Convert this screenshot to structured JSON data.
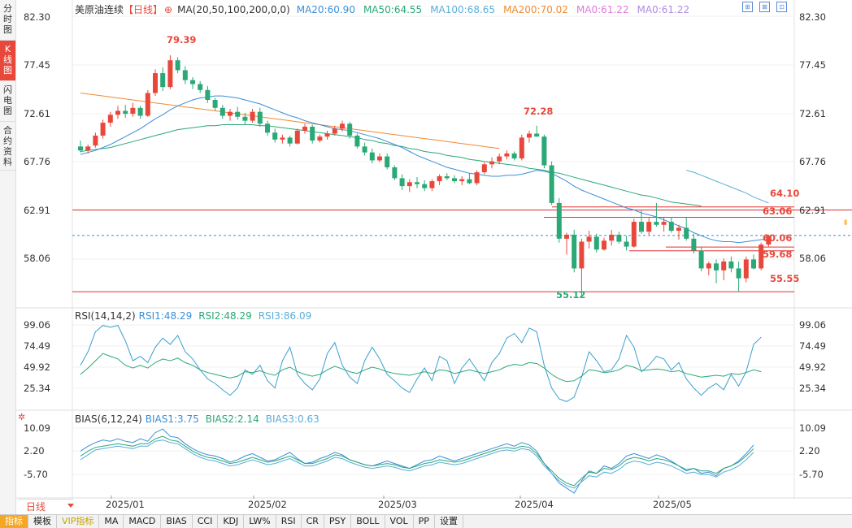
{
  "sidebar": {
    "items": [
      {
        "label": "分时图",
        "active": false
      },
      {
        "label": "K线图",
        "active": true
      },
      {
        "label": "闪电图",
        "active": false
      },
      {
        "label": "合约资料",
        "active": false
      }
    ]
  },
  "main_legend": {
    "name": "美原油连续",
    "period": "【日线】",
    "ma_def": "MA(20,50,100,200,0,0)",
    "ma20": "MA20:60.90",
    "ma50": "MA50:64.55",
    "ma100": "MA100:68.65",
    "ma200": "MA200:70.02",
    "ma0a": "MA0:61.22",
    "ma0b": "MA0:61.22",
    "colors": {
      "ma20": "#3a8fd9",
      "ma50": "#2aa876",
      "ma100": "#5aaed8",
      "ma200": "#f08a30",
      "ma0": "#e07ad8"
    }
  },
  "rsi_legend": {
    "def": "RSI(14,14,2)",
    "rsi1": "RSI1:48.29",
    "rsi2": "RSI2:48.29",
    "rsi3": "RSI3:86.09"
  },
  "bias_legend": {
    "def": "BIAS(6,12,24)",
    "bias1": "BIAS1:3.75",
    "bias2": "BIAS2:2.14",
    "bias3": "BIAS3:0.63"
  },
  "price_axis": [
    "82.30",
    "77.45",
    "72.61",
    "67.76",
    "62.91",
    "58.06"
  ],
  "rsi_axis": [
    "99.06",
    "74.49",
    "49.92",
    "25.34"
  ],
  "bias_axis": [
    "10.09",
    "2.20",
    "-5.70"
  ],
  "annotations": {
    "high": "79.39",
    "mid_high": "72.28",
    "low": "55.12",
    "levels": [
      "64.10",
      "63.06",
      "60.06",
      "59.68",
      "55.55"
    ]
  },
  "dates": [
    "2025/01",
    "2025/02",
    "2025/03",
    "2025/04",
    "2025/05"
  ],
  "period_button": "日线",
  "bottom_tabs": [
    {
      "label": "指标",
      "active": true
    },
    {
      "label": "模板",
      "active": false
    },
    {
      "label": "VIP指标",
      "active": false,
      "vip": true
    },
    {
      "label": "MA",
      "active": false
    },
    {
      "label": "MACD",
      "active": false
    },
    {
      "label": "BIAS",
      "active": false
    },
    {
      "label": "CCI",
      "active": false
    },
    {
      "label": "KDJ",
      "active": false
    },
    {
      "label": "LW%",
      "active": false
    },
    {
      "label": "RSI",
      "active": false
    },
    {
      "label": "CR",
      "active": false
    },
    {
      "label": "PSY",
      "active": false
    },
    {
      "label": "BOLL",
      "active": false
    },
    {
      "label": "VOL",
      "active": false
    },
    {
      "label": "PP",
      "active": false
    },
    {
      "label": "设置",
      "active": false
    }
  ],
  "chart_data": {
    "type": "candlestick",
    "ohlc": [
      [
        70.2,
        70.8,
        69.6,
        69.8
      ],
      [
        69.8,
        70.4,
        69.5,
        70.2
      ],
      [
        70.3,
        71.6,
        70.1,
        71.3
      ],
      [
        71.3,
        72.9,
        71.0,
        72.6
      ],
      [
        72.6,
        73.7,
        72.2,
        73.4
      ],
      [
        73.4,
        74.3,
        73.0,
        73.8
      ],
      [
        73.8,
        74.4,
        73.1,
        73.5
      ],
      [
        73.5,
        74.6,
        73.2,
        74.1
      ],
      [
        74.1,
        74.3,
        73.0,
        73.3
      ],
      [
        73.3,
        75.9,
        73.2,
        75.6
      ],
      [
        75.6,
        78.0,
        75.3,
        77.6
      ],
      [
        77.6,
        78.2,
        75.8,
        76.2
      ],
      [
        76.2,
        79.4,
        76.0,
        78.9
      ],
      [
        78.9,
        79.2,
        77.6,
        77.9
      ],
      [
        77.9,
        78.3,
        76.5,
        76.9
      ],
      [
        76.9,
        77.2,
        76.0,
        76.5
      ],
      [
        76.5,
        76.8,
        75.6,
        75.9
      ],
      [
        75.9,
        76.3,
        74.6,
        74.9
      ],
      [
        74.9,
        75.1,
        73.8,
        74.1
      ],
      [
        74.1,
        74.4,
        73.0,
        73.3
      ],
      [
        73.3,
        74.0,
        72.8,
        73.7
      ],
      [
        73.7,
        74.2,
        72.9,
        73.2
      ],
      [
        73.2,
        73.6,
        72.4,
        72.8
      ],
      [
        72.8,
        74.0,
        72.6,
        73.7
      ],
      [
        73.7,
        74.1,
        72.2,
        72.5
      ],
      [
        72.5,
        72.8,
        71.3,
        71.6
      ],
      [
        71.6,
        72.0,
        70.6,
        70.9
      ],
      [
        70.9,
        71.4,
        70.5,
        71.1
      ],
      [
        71.1,
        71.3,
        70.2,
        70.5
      ],
      [
        70.5,
        72.0,
        70.4,
        71.8
      ],
      [
        71.8,
        72.5,
        71.5,
        72.2
      ],
      [
        72.2,
        72.4,
        70.5,
        70.8
      ],
      [
        70.8,
        71.4,
        70.6,
        71.2
      ],
      [
        71.2,
        71.8,
        70.9,
        71.5
      ],
      [
        71.5,
        72.3,
        71.3,
        72.0
      ],
      [
        72.0,
        72.8,
        71.7,
        72.5
      ],
      [
        72.5,
        72.7,
        71.0,
        71.3
      ],
      [
        71.3,
        71.5,
        70.0,
        70.2
      ],
      [
        70.2,
        70.6,
        69.3,
        69.6
      ],
      [
        69.6,
        70.0,
        68.5,
        68.8
      ],
      [
        68.8,
        69.5,
        68.6,
        69.2
      ],
      [
        69.2,
        69.5,
        67.9,
        68.1
      ],
      [
        68.1,
        68.3,
        66.8,
        67.0
      ],
      [
        67.0,
        67.4,
        65.8,
        66.2
      ],
      [
        66.2,
        66.9,
        65.6,
        66.6
      ],
      [
        66.6,
        67.1,
        66.0,
        66.4
      ],
      [
        66.4,
        66.8,
        65.7,
        66.0
      ],
      [
        66.0,
        66.9,
        65.7,
        66.7
      ],
      [
        66.7,
        67.4,
        66.3,
        67.2
      ],
      [
        67.2,
        67.5,
        66.8,
        67.0
      ],
      [
        67.0,
        67.3,
        66.5,
        66.7
      ],
      [
        66.7,
        67.2,
        66.3,
        66.9
      ],
      [
        66.9,
        67.5,
        66.4,
        66.5
      ],
      [
        66.5,
        67.8,
        66.3,
        67.6
      ],
      [
        67.6,
        68.6,
        67.4,
        68.4
      ],
      [
        68.4,
        69.1,
        68.0,
        68.7
      ],
      [
        68.7,
        69.5,
        68.4,
        69.2
      ],
      [
        69.2,
        69.8,
        68.9,
        69.5
      ],
      [
        69.5,
        69.7,
        68.8,
        69.0
      ],
      [
        69.0,
        71.4,
        68.8,
        71.1
      ],
      [
        71.1,
        71.8,
        70.6,
        71.5
      ],
      [
        71.5,
        72.3,
        71.2,
        71.2
      ],
      [
        71.2,
        71.4,
        68.0,
        68.3
      ],
      [
        68.3,
        68.7,
        64.3,
        64.5
      ],
      [
        64.5,
        65.0,
        60.5,
        60.9
      ],
      [
        60.9,
        61.5,
        59.3,
        61.3
      ],
      [
        61.3,
        61.8,
        57.5,
        57.9
      ],
      [
        57.9,
        60.9,
        55.1,
        60.6
      ],
      [
        60.6,
        61.7,
        59.9,
        61.1
      ],
      [
        61.1,
        61.4,
        59.5,
        59.8
      ],
      [
        59.8,
        61.0,
        59.7,
        60.7
      ],
      [
        60.7,
        61.8,
        60.2,
        61.3
      ],
      [
        61.3,
        61.6,
        60.4,
        60.6
      ],
      [
        60.6,
        61.2,
        59.7,
        60.1
      ],
      [
        60.1,
        62.9,
        60.0,
        62.6
      ],
      [
        62.6,
        63.8,
        61.4,
        61.6
      ],
      [
        61.6,
        63.0,
        61.3,
        62.6
      ],
      [
        62.6,
        64.5,
        62.1,
        62.3
      ],
      [
        62.3,
        63.0,
        61.6,
        62.6
      ],
      [
        62.6,
        63.1,
        61.5,
        61.7
      ],
      [
        61.7,
        62.3,
        60.8,
        62.0
      ],
      [
        62.0,
        63.0,
        60.7,
        60.9
      ],
      [
        60.9,
        61.4,
        59.4,
        59.7
      ],
      [
        59.7,
        60.1,
        57.6,
        57.9
      ],
      [
        57.9,
        58.6,
        57.2,
        58.4
      ],
      [
        58.4,
        58.8,
        56.4,
        57.7
      ],
      [
        57.7,
        58.9,
        56.7,
        58.6
      ],
      [
        58.6,
        59.1,
        57.5,
        57.9
      ],
      [
        57.9,
        58.6,
        55.6,
        56.9
      ],
      [
        56.9,
        59.1,
        56.5,
        58.8
      ],
      [
        58.8,
        59.3,
        57.8,
        57.9
      ],
      [
        57.9,
        60.5,
        57.7,
        60.3
      ],
      [
        60.3,
        61.3,
        60.1,
        61.2
      ]
    ],
    "ma20": [
      69.4,
      69.6,
      69.8,
      70.1,
      70.4,
      70.8,
      71.2,
      71.6,
      72.0,
      72.5,
      73.0,
      73.4,
      73.9,
      74.3,
      74.6,
      74.9,
      75.1,
      75.2,
      75.3,
      75.3,
      75.2,
      75.1,
      74.9,
      74.7,
      74.5,
      74.2,
      73.9,
      73.6,
      73.3,
      73.1,
      72.8,
      72.6,
      72.4,
      72.2,
      72.0,
      71.9,
      71.8,
      71.6,
      71.4,
      71.2,
      71.0,
      70.7,
      70.4,
      70.1,
      69.7,
      69.3,
      69.0,
      68.7,
      68.4,
      68.1,
      67.9,
      67.7,
      67.5,
      67.4,
      67.3,
      67.2,
      67.2,
      67.3,
      67.3,
      67.4,
      67.6,
      67.8,
      67.7,
      67.5,
      67.1,
      66.7,
      66.2,
      65.8,
      65.5,
      65.2,
      64.9,
      64.6,
      64.3,
      64.0,
      63.8,
      63.5,
      63.3,
      63.1,
      62.8,
      62.5,
      62.2,
      61.9,
      61.5,
      61.2,
      60.9,
      60.7,
      60.6,
      60.6,
      60.5,
      60.6,
      60.7,
      60.8,
      60.9
    ],
    "ma50": [
      69.7,
      69.8,
      69.9,
      70.0,
      70.1,
      70.3,
      70.5,
      70.7,
      70.9,
      71.1,
      71.3,
      71.5,
      71.7,
      71.9,
      72.0,
      72.1,
      72.2,
      72.3,
      72.3,
      72.4,
      72.4,
      72.4,
      72.4,
      72.4,
      72.3,
      72.3,
      72.2,
      72.1,
      72.0,
      71.9,
      71.8,
      71.7,
      71.6,
      71.5,
      71.4,
      71.3,
      71.2,
      71.1,
      70.9,
      70.8,
      70.6,
      70.5,
      70.3,
      70.2,
      70.0,
      69.9,
      69.7,
      69.6,
      69.5,
      69.3,
      69.2,
      69.1,
      68.9,
      68.8,
      68.7,
      68.6,
      68.5,
      68.4,
      68.3,
      68.2,
      68.0,
      67.9,
      67.8,
      67.6,
      67.5,
      67.3,
      67.1,
      66.9,
      66.7,
      66.5,
      66.3,
      66.1,
      65.9,
      65.7,
      65.5,
      65.3,
      65.2,
      65.0,
      64.8,
      64.6,
      64.5,
      64.4,
      64.3,
      64.2
    ],
    "ma200": [
      75.6,
      75.5,
      75.4,
      75.3,
      75.2,
      75.1,
      75.0,
      74.9,
      74.8,
      74.7,
      74.6,
      74.5,
      74.4,
      74.3,
      74.2,
      74.1,
      74.0,
      73.9,
      73.8,
      73.7,
      73.6,
      73.5,
      73.4,
      73.3,
      73.2,
      73.1,
      73.0,
      72.9,
      72.8,
      72.7,
      72.6,
      72.5,
      72.4,
      72.3,
      72.2,
      72.1,
      72.0,
      71.9,
      71.8,
      71.7,
      71.6,
      71.5,
      71.4,
      71.3,
      71.2,
      71.1,
      71.0,
      70.9,
      70.8,
      70.7,
      70.6,
      70.5,
      70.4,
      70.3,
      70.2,
      70.1,
      70.0
    ],
    "ma100_tail": [
      67.8,
      67.6,
      67.3,
      67.0,
      66.7,
      66.4,
      66.1,
      65.8,
      65.5,
      65.1,
      64.8,
      64.5
    ],
    "rsi_a": [
      55,
      70,
      92,
      99,
      97,
      99,
      82,
      60,
      65,
      58,
      75,
      85,
      78,
      88,
      70,
      62,
      50,
      40,
      35,
      28,
      22,
      30,
      50,
      45,
      55,
      38,
      30,
      60,
      75,
      45,
      35,
      28,
      40,
      68,
      80,
      55,
      42,
      35,
      60,
      75,
      62,
      45,
      38,
      30,
      25,
      40,
      52,
      38,
      65,
      60,
      35,
      52,
      62,
      50,
      38,
      58,
      68,
      85,
      90,
      80,
      96,
      92,
      55,
      30,
      18,
      15,
      20,
      42,
      70,
      60,
      48,
      50,
      62,
      88,
      75,
      48,
      55,
      65,
      62,
      50,
      58,
      40,
      30,
      22,
      30,
      35,
      28,
      45,
      32,
      48,
      78,
      86
    ],
    "rsi_b": [
      45,
      52,
      60,
      68,
      65,
      62,
      55,
      52,
      55,
      52,
      58,
      62,
      60,
      63,
      58,
      55,
      50,
      47,
      45,
      43,
      41,
      43,
      48,
      47,
      49,
      46,
      44,
      50,
      53,
      48,
      45,
      43,
      45,
      50,
      54,
      51,
      48,
      46,
      50,
      53,
      51,
      48,
      46,
      45,
      44,
      46,
      48,
      46,
      50,
      49,
      46,
      48,
      50,
      48,
      46,
      48,
      50,
      54,
      56,
      55,
      58,
      57,
      52,
      45,
      40,
      37,
      38,
      43,
      50,
      49,
      47,
      48,
      50,
      55,
      53,
      49,
      50,
      51,
      50,
      48,
      49,
      46,
      44,
      42,
      43,
      44,
      43,
      46,
      45,
      47,
      50,
      48
    ],
    "bias_a": [
      1.0,
      3.0,
      4.5,
      5.5,
      5.0,
      6.0,
      5.0,
      4.5,
      6.0,
      5.0,
      8.5,
      10.0,
      7.0,
      6.5,
      4.0,
      2.0,
      0.5,
      -0.5,
      -1.0,
      -2.0,
      -3.5,
      -2.5,
      -1.0,
      0.0,
      -1.5,
      -3.0,
      -2.5,
      -1.0,
      0.5,
      -2.0,
      -4.0,
      -3.5,
      -2.0,
      -1.0,
      0.5,
      -0.5,
      -2.5,
      -3.5,
      -4.5,
      -5.0,
      -4.0,
      -3.0,
      -4.0,
      -5.0,
      -6.0,
      -4.5,
      -3.0,
      -2.5,
      -1.0,
      -2.0,
      -3.0,
      -2.0,
      -1.0,
      0.0,
      1.0,
      2.0,
      3.0,
      4.0,
      3.0,
      4.5,
      3.5,
      1.0,
      -4.0,
      -8.0,
      -12.0,
      -14.0,
      -16.0,
      -11.0,
      -7.0,
      -8.0,
      -5.0,
      -6.0,
      -4.0,
      -1.0,
      0.0,
      -1.0,
      -2.0,
      -0.5,
      -1.5,
      -3.0,
      -5.0,
      -7.0,
      -6.0,
      -8.0,
      -7.5,
      -9.0,
      -6.0,
      -5.0,
      -3.0,
      0.0,
      3.5
    ],
    "bias_b": [
      -1.0,
      1.0,
      2.5,
      3.0,
      3.5,
      4.0,
      3.5,
      3.0,
      4.0,
      4.0,
      6.0,
      7.0,
      5.5,
      5.0,
      3.0,
      1.0,
      -0.5,
      -1.5,
      -2.0,
      -3.0,
      -4.0,
      -3.5,
      -2.5,
      -1.5,
      -2.5,
      -3.5,
      -3.0,
      -2.0,
      -1.0,
      -2.5,
      -4.0,
      -4.0,
      -3.0,
      -2.0,
      -0.5,
      -1.0,
      -2.5,
      -3.5,
      -4.5,
      -5.0,
      -4.5,
      -4.0,
      -4.5,
      -5.5,
      -6.0,
      -5.0,
      -4.0,
      -3.5,
      -2.5,
      -3.0,
      -3.5,
      -3.0,
      -2.0,
      -1.0,
      0.0,
      1.0,
      2.0,
      2.5,
      2.0,
      3.0,
      2.5,
      0.0,
      -4.0,
      -7.0,
      -10.0,
      -12.0,
      -13.0,
      -10.0,
      -7.5,
      -8.0,
      -6.0,
      -6.5,
      -5.0,
      -2.5,
      -1.5,
      -2.0,
      -3.0,
      -2.0,
      -2.5,
      -3.5,
      -5.0,
      -6.5,
      -6.0,
      -7.0,
      -7.0,
      -8.0,
      -6.0,
      -5.0,
      -3.5,
      -1.0,
      2.0
    ],
    "bias_c": [
      -2.5,
      -0.5,
      1.5,
      2.0,
      2.5,
      3.0,
      2.5,
      2.0,
      3.0,
      3.0,
      5.0,
      5.5,
      4.5,
      4.0,
      2.0,
      0.0,
      -1.5,
      -2.5,
      -3.0,
      -4.0,
      -5.0,
      -4.5,
      -3.5,
      -2.5,
      -3.5,
      -4.5,
      -4.0,
      -3.0,
      -2.0,
      -3.5,
      -5.0,
      -5.0,
      -4.0,
      -3.0,
      -1.5,
      -2.0,
      -3.5,
      -4.5,
      -5.5,
      -6.0,
      -5.5,
      -5.0,
      -5.5,
      -6.5,
      -7.0,
      -6.0,
      -5.0,
      -4.5,
      -3.5,
      -4.0,
      -4.5,
      -4.0,
      -3.0,
      -2.0,
      -1.0,
      0.0,
      1.0,
      1.5,
      1.0,
      2.0,
      1.5,
      -1.0,
      -5.0,
      -8.0,
      -11.0,
      -13.0,
      -14.0,
      -11.5,
      -9.0,
      -9.5,
      -7.5,
      -8.0,
      -6.5,
      -4.0,
      -3.0,
      -3.5,
      -4.5,
      -3.5,
      -4.0,
      -5.0,
      -6.5,
      -8.0,
      -7.5,
      -8.5,
      -8.5,
      -9.5,
      -7.5,
      -6.5,
      -5.0,
      -2.5,
      0.5
    ],
    "price_range": [
      54.0,
      84.0
    ],
    "rsi_range": [
      10,
      104
    ],
    "bias_range": [
      -17,
      12
    ]
  }
}
